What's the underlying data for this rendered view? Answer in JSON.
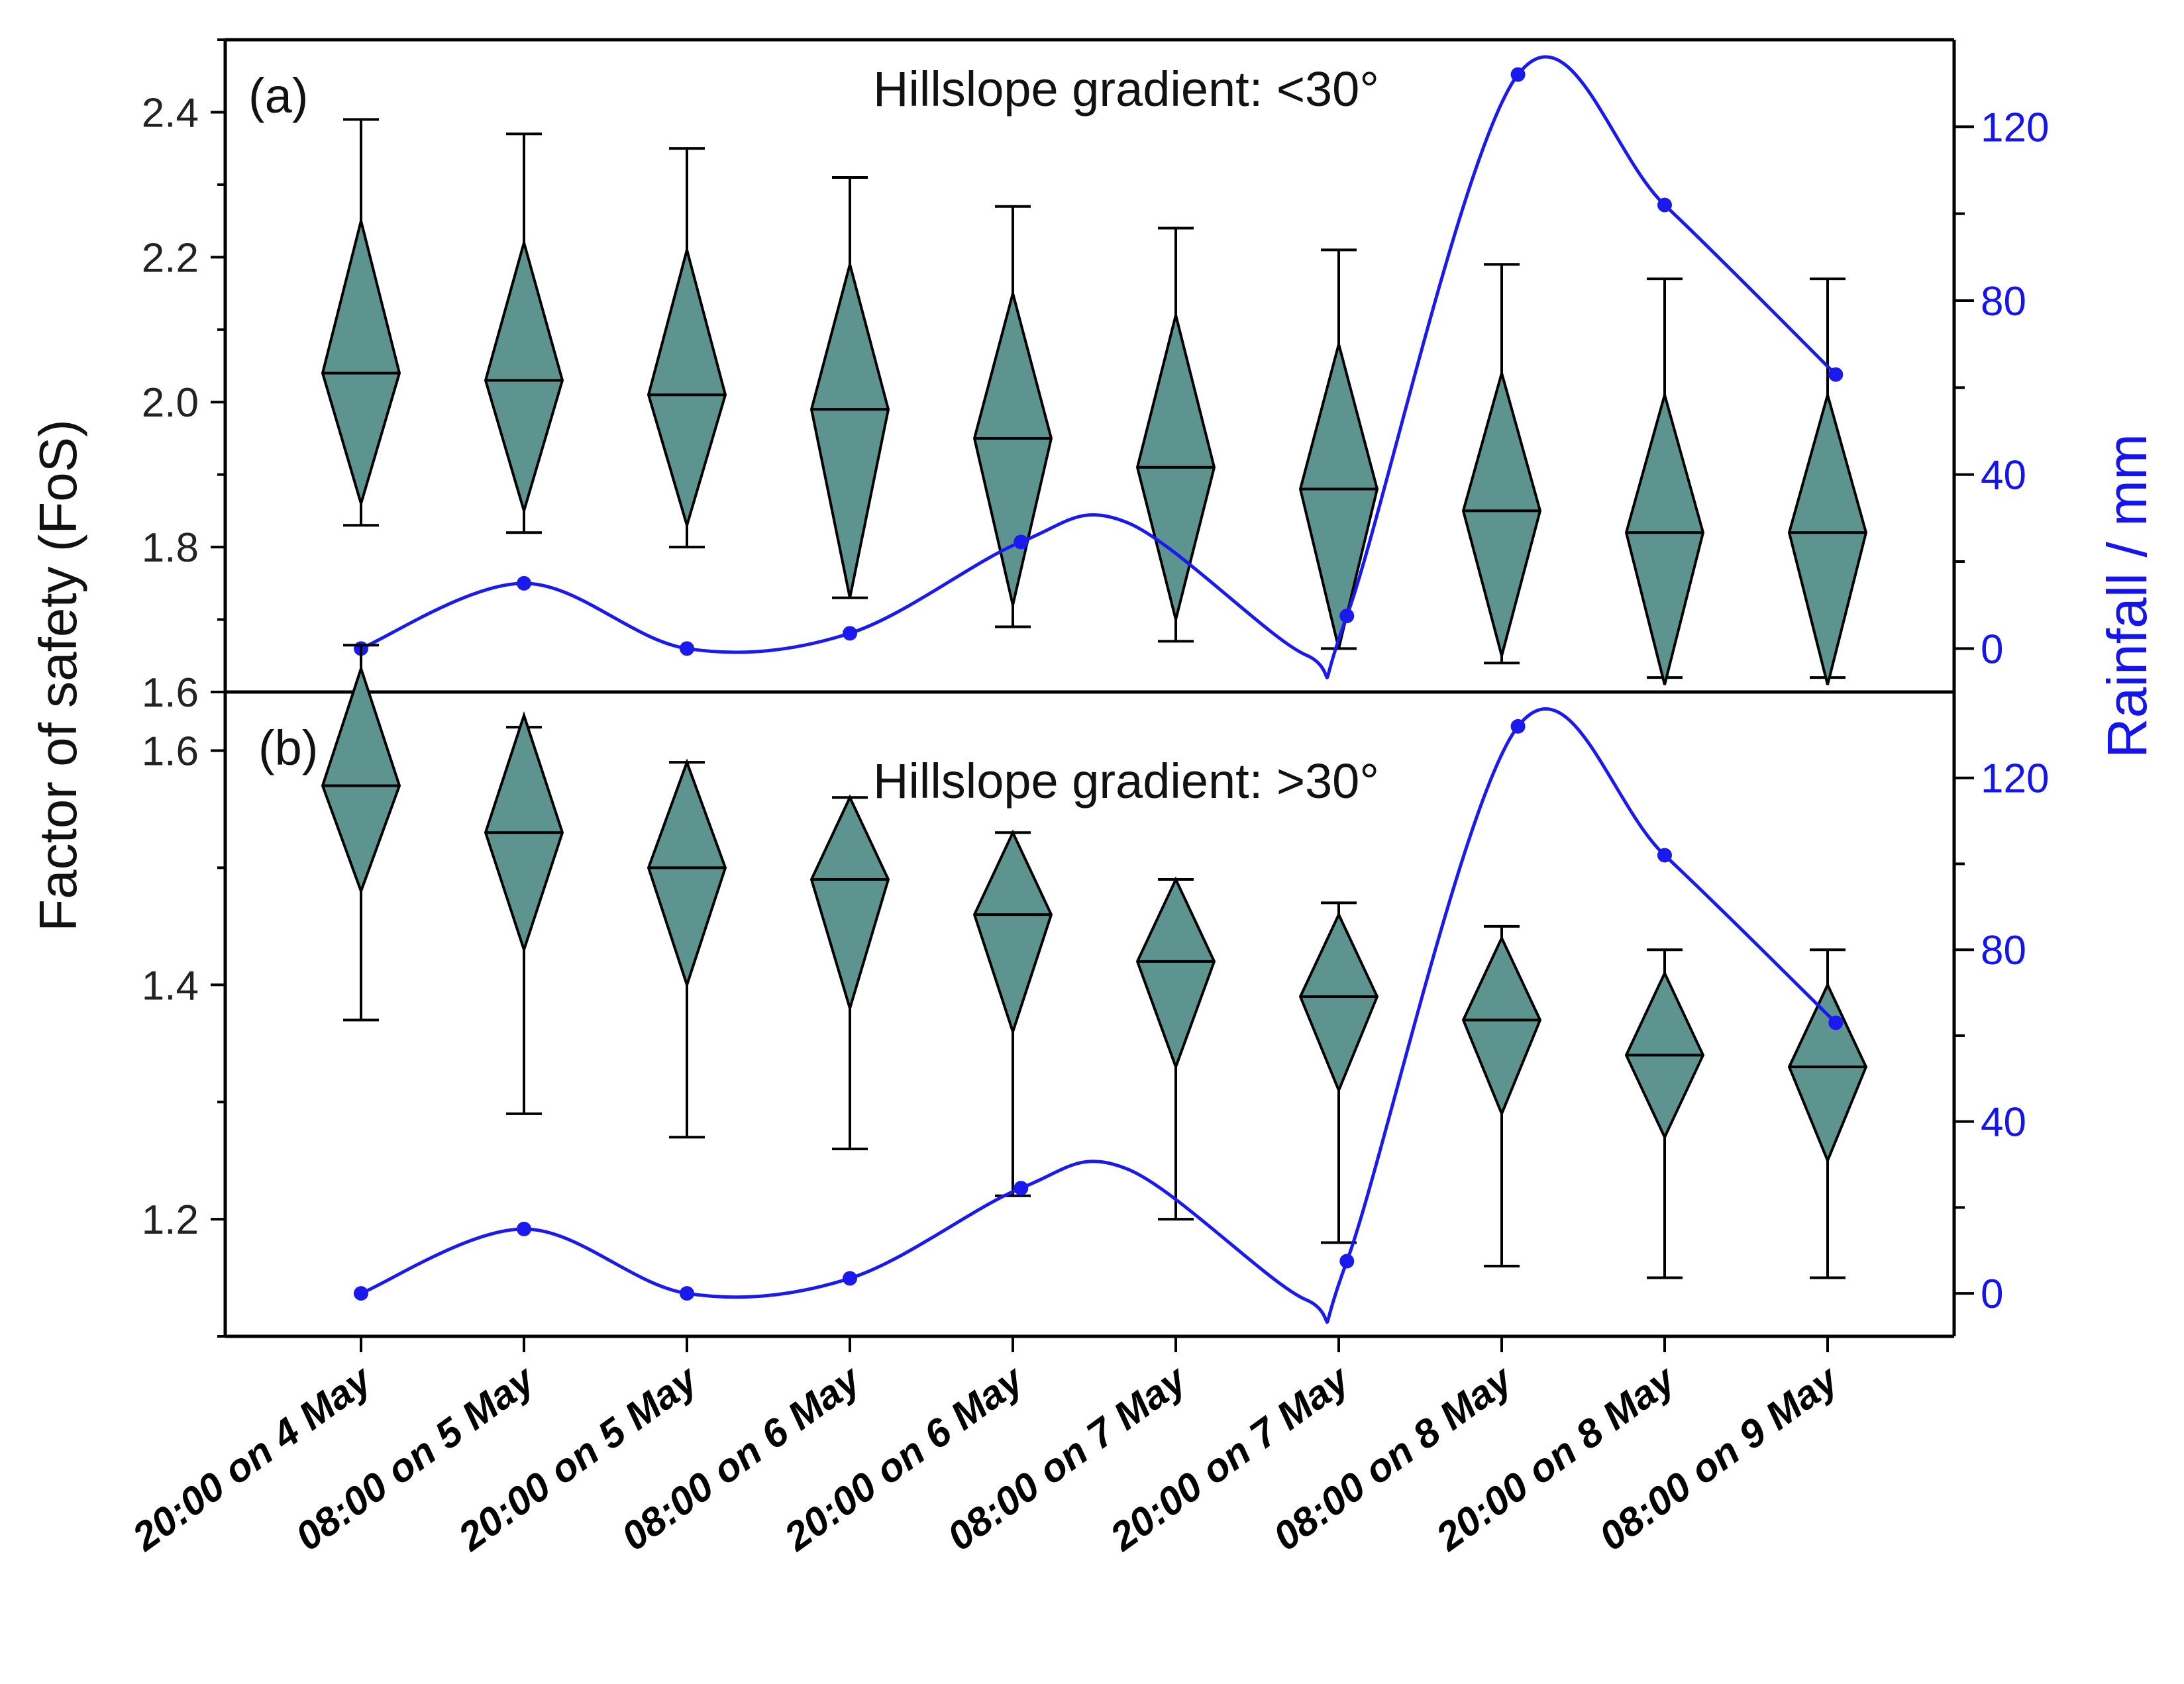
{
  "chart_data": [
    {
      "type": "box",
      "panel_label": "(a)",
      "title": "Hillslope gradient: <30°",
      "ylabel": "Factor of  safety (FoS)",
      "y2label": "Rainfall / mm",
      "categories": [
        "20:00 on 4 May",
        "08:00 on 5 May",
        "20:00 on 5 May",
        "08:00 on 6 May",
        "20:00 on 6 May",
        "08:00 on 7 May",
        "20:00 on 7 May",
        "08:00 on 8 May",
        "20:00 on 8 May",
        "08:00 on 9 May"
      ],
      "ylim": [
        1.6,
        2.5
      ],
      "yticks": [
        "1.6",
        "1.8",
        "2.0",
        "2.2",
        "2.4"
      ],
      "y2lim": [
        -10,
        140
      ],
      "y2ticks": [
        "0",
        "40",
        "80",
        "120"
      ],
      "series": [
        {
          "name": "FoS",
          "whisker_min": [
            1.83,
            1.82,
            1.8,
            1.73,
            1.69,
            1.67,
            1.66,
            1.64,
            1.62,
            1.62
          ],
          "box_low": [
            1.86,
            1.85,
            1.83,
            1.73,
            1.72,
            1.7,
            1.66,
            1.65,
            1.61,
            1.61
          ],
          "median": [
            2.04,
            2.03,
            2.01,
            1.99,
            1.95,
            1.91,
            1.88,
            1.85,
            1.82,
            1.82
          ],
          "box_high": [
            2.25,
            2.22,
            2.21,
            2.19,
            2.15,
            2.12,
            2.08,
            2.04,
            2.01,
            2.01
          ],
          "whisker_max": [
            2.39,
            2.37,
            2.35,
            2.31,
            2.27,
            2.24,
            2.21,
            2.19,
            2.17,
            2.17
          ]
        },
        {
          "name": "Rainfall",
          "axis": "right",
          "values": [
            0,
            15,
            0,
            3.5,
            24.5,
            29,
            -1.5,
            7.5,
            132,
            102,
            63
          ],
          "x_positions": [
            0,
            1,
            2,
            3,
            4.05,
            4.7,
            5.8,
            6.05,
            7.1,
            8.0,
            9.05
          ]
        }
      ]
    },
    {
      "type": "box",
      "panel_label": "(b)",
      "title": "Hillslope gradient: >30°",
      "ylabel": "Factor of  safety (FoS)",
      "y2label": "Rainfall / mm",
      "categories": [
        "20:00 on 4 May",
        "08:00 on 5 May",
        "20:00 on 5 May",
        "08:00 on 6 May",
        "20:00 on 6 May",
        "08:00 on 7 May",
        "20:00 on 7 May",
        "08:00 on 8 May",
        "20:00 on 8 May",
        "08:00 on 9 May"
      ],
      "ylim": [
        1.1,
        1.65
      ],
      "yticks": [
        "1.2",
        "1.4",
        "1.6"
      ],
      "y2lim": [
        -10,
        140
      ],
      "y2ticks": [
        "0",
        "40",
        "80",
        "120"
      ],
      "series": [
        {
          "name": "FoS",
          "whisker_min": [
            1.37,
            1.29,
            1.27,
            1.26,
            1.22,
            1.2,
            1.18,
            1.16,
            1.15,
            1.15
          ],
          "box_low": [
            1.48,
            1.43,
            1.4,
            1.38,
            1.36,
            1.33,
            1.31,
            1.29,
            1.27,
            1.25
          ],
          "median": [
            1.57,
            1.53,
            1.5,
            1.49,
            1.46,
            1.42,
            1.39,
            1.37,
            1.34,
            1.33
          ],
          "box_high": [
            1.67,
            1.63,
            1.59,
            1.56,
            1.53,
            1.49,
            1.46,
            1.44,
            1.41,
            1.4
          ],
          "whisker_max": [
            1.69,
            1.62,
            1.59,
            1.56,
            1.53,
            1.49,
            1.47,
            1.45,
            1.43,
            1.43
          ]
        },
        {
          "name": "Rainfall",
          "axis": "right",
          "values": [
            0,
            15,
            0,
            3.5,
            24.5,
            29,
            -1.5,
            7.5,
            132,
            102,
            63
          ],
          "x_positions": [
            0,
            1,
            2,
            3,
            4.05,
            4.7,
            5.8,
            6.05,
            7.1,
            8.0,
            9.05
          ]
        }
      ]
    }
  ],
  "colors": {
    "box_fill": "#5e9490",
    "rain_line": "#1a1aee",
    "right_axis_text": "#1414ee"
  }
}
